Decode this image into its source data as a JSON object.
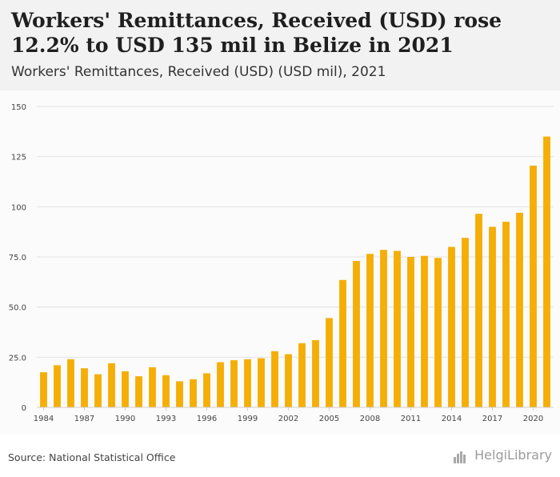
{
  "header": {
    "title": "Workers' Remittances, Received (USD) rose 12.2% to USD 135 mil in Belize in 2021",
    "subtitle": "Workers' Remittances, Received (USD) (USD mil), 2021"
  },
  "footer": {
    "source": "Source: National Statistical Office",
    "logo_text": "HelgiLibrary"
  },
  "colors": {
    "bar": "#f5ae06",
    "grid": "#e3e3e3",
    "axis_text": "#444444",
    "header_bg": "#f2f2f2"
  },
  "chart_data": {
    "type": "bar",
    "x": [
      1984,
      1985,
      1986,
      1987,
      1988,
      1989,
      1990,
      1991,
      1992,
      1993,
      1994,
      1995,
      1996,
      1997,
      1998,
      1999,
      2000,
      2001,
      2002,
      2003,
      2004,
      2005,
      2006,
      2007,
      2008,
      2009,
      2010,
      2011,
      2012,
      2013,
      2014,
      2015,
      2016,
      2017,
      2018,
      2019,
      2020,
      2021
    ],
    "values": [
      17.5,
      21,
      24,
      19.5,
      16.5,
      22,
      18,
      15.5,
      20,
      16,
      13,
      14,
      17,
      22.5,
      23.5,
      24,
      24.5,
      28,
      26.5,
      32,
      33.5,
      44.5,
      63.5,
      73,
      76.5,
      78.5,
      78,
      75,
      75.5,
      74.5,
      80,
      84.5,
      96.5,
      90,
      92.5,
      97,
      120.5,
      135
    ],
    "x_tick_labels": [
      "1984",
      "1987",
      "1990",
      "1993",
      "1996",
      "1999",
      "2002",
      "2005",
      "2008",
      "2011",
      "2014",
      "2017",
      "2020"
    ],
    "x_tick_values": [
      1984,
      1987,
      1990,
      1993,
      1996,
      1999,
      2002,
      2005,
      2008,
      2011,
      2014,
      2017,
      2020
    ],
    "y_tick_labels": [
      "0",
      "25.0",
      "50.0",
      "75.0",
      "100",
      "125",
      "150"
    ],
    "y_tick_values": [
      0,
      25,
      50,
      75,
      100,
      125,
      150
    ],
    "ylim": [
      0,
      150
    ],
    "grid": true,
    "legend": "none"
  }
}
